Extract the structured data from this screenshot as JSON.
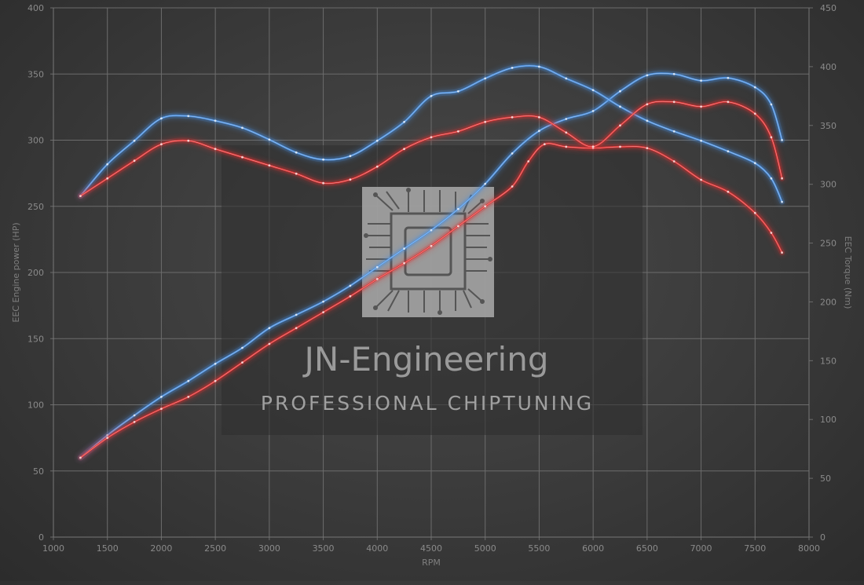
{
  "chart_data": {
    "type": "line",
    "xlabel": "RPM",
    "ylabel_left": "EEC Engine power (HP)",
    "ylabel_right": "EEC Torque (Nm)",
    "xlim": [
      1000,
      8000
    ],
    "xticks": [
      1000,
      1500,
      2000,
      2500,
      3000,
      3500,
      4000,
      4500,
      5000,
      5500,
      6000,
      6500,
      7000,
      7500,
      8000
    ],
    "ylim_left": [
      0,
      400
    ],
    "yticks_left": [
      0,
      50,
      100,
      150,
      200,
      250,
      300,
      350,
      400
    ],
    "ylim_right": [
      0,
      450
    ],
    "yticks_right": [
      0,
      50,
      100,
      150,
      200,
      250,
      300,
      350,
      400,
      450
    ],
    "grid": true,
    "series": [
      {
        "axis": "left",
        "color": "#4a90e2",
        "x": [
          1250,
          1500,
          1750,
          2000,
          2250,
          2500,
          2750,
          3000,
          3250,
          3500,
          3750,
          4000,
          4250,
          4500,
          4750,
          5000,
          5250,
          5500,
          5750,
          6000,
          6250,
          6500,
          6750,
          7000,
          7250,
          7500,
          7650,
          7750
        ],
        "y": [
          60,
          77,
          92,
          106,
          118,
          131,
          143,
          158,
          168,
          178,
          190,
          204,
          218,
          232,
          248,
          267,
          290,
          307,
          316,
          322,
          337,
          349,
          350,
          345,
          347,
          340,
          327,
          300
        ]
      },
      {
        "axis": "left",
        "color": "#e03030",
        "x": [
          1250,
          1500,
          1750,
          2000,
          2250,
          2500,
          2750,
          3000,
          3250,
          3500,
          3750,
          4000,
          4250,
          4500,
          4750,
          5000,
          5250,
          5400,
          5550,
          5750,
          6000,
          6250,
          6500,
          6750,
          7000,
          7250,
          7500,
          7650,
          7750
        ],
        "y": [
          60,
          75,
          87,
          97,
          106,
          118,
          132,
          146,
          158,
          170,
          182,
          195,
          207,
          220,
          235,
          250,
          265,
          284,
          297,
          295,
          294,
          295,
          294,
          284,
          270,
          261,
          245,
          230,
          215
        ]
      },
      {
        "axis": "right",
        "color": "#4a90e2",
        "x": [
          1250,
          1500,
          1750,
          2000,
          2250,
          2500,
          2750,
          3000,
          3250,
          3500,
          3750,
          4000,
          4250,
          4500,
          4750,
          5000,
          5250,
          5500,
          5750,
          6000,
          6250,
          6500,
          6750,
          7000,
          7250,
          7500,
          7650,
          7750
        ],
        "y": [
          290,
          317,
          337,
          356,
          358,
          354,
          348,
          338,
          327,
          321,
          324,
          337,
          353,
          375,
          379,
          390,
          399,
          400,
          390,
          380,
          366,
          354,
          345,
          337,
          328,
          318,
          305,
          285
        ]
      },
      {
        "axis": "right",
        "color": "#e03030",
        "x": [
          1250,
          1500,
          1750,
          2000,
          2250,
          2500,
          2750,
          3000,
          3250,
          3500,
          3750,
          4000,
          4250,
          4500,
          4750,
          5000,
          5250,
          5500,
          5750,
          6000,
          6250,
          6500,
          6750,
          7000,
          7250,
          7500,
          7650,
          7750
        ],
        "y": [
          290,
          305,
          320,
          334,
          337,
          330,
          323,
          316,
          309,
          301,
          304,
          315,
          330,
          340,
          345,
          353,
          357,
          357,
          344,
          332,
          350,
          368,
          370,
          366,
          370,
          360,
          340,
          305
        ]
      }
    ]
  },
  "watermark": {
    "title": "JN-Engineering",
    "subtitle": "PROFESSIONAL CHIPTUNING"
  }
}
